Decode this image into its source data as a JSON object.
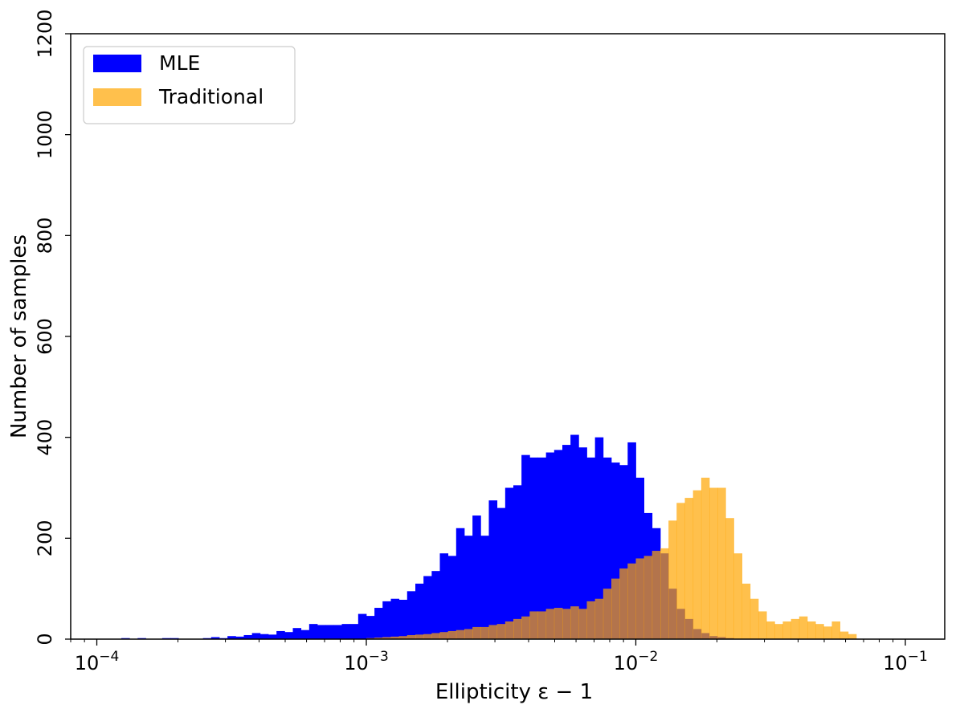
{
  "chart_data": {
    "type": "bar",
    "title": "",
    "xlabel": "Ellipticity ε − 1",
    "ylabel": "Number of samples",
    "xscale": "log",
    "xlim": [
      8e-05,
      0.14
    ],
    "ylim": [
      0,
      1200
    ],
    "yticks": [
      0,
      200,
      400,
      600,
      800,
      1000,
      1200
    ],
    "xticks": [
      {
        "value": 0.0001,
        "base": "10",
        "exp": "−4"
      },
      {
        "value": 0.001,
        "base": "10",
        "exp": "−3"
      },
      {
        "value": 0.01,
        "base": "10",
        "exp": "−2"
      },
      {
        "value": 0.1,
        "base": "10",
        "exp": "−1"
      }
    ],
    "bin_edges": [
      0.0001,
      0.0001072,
      0.0001149,
      0.0001233,
      0.0001322,
      0.0001417,
      0.000152,
      0.000163,
      0.0001748,
      0.0001874,
      0.0002009,
      0.0002154,
      0.000231,
      0.0002477,
      0.0002656,
      0.0002848,
      0.0003054,
      0.0003275,
      0.0003511,
      0.0003765,
      0.0004037,
      0.0004329,
      0.0004642,
      0.0004977,
      0.0005337,
      0.0005722,
      0.0006136,
      0.0006579,
      0.0007055,
      0.0007565,
      0.0008111,
      0.0008697,
      0.0009326,
      0.001,
      0.001072,
      0.001149,
      0.001233,
      0.001322,
      0.001417,
      0.00152,
      0.00163,
      0.001748,
      0.001874,
      0.002009,
      0.002154,
      0.00231,
      0.002477,
      0.002656,
      0.002848,
      0.003054,
      0.003275,
      0.003511,
      0.003765,
      0.004037,
      0.004329,
      0.004642,
      0.004977,
      0.005337,
      0.005722,
      0.006136,
      0.006579,
      0.007055,
      0.007565,
      0.008111,
      0.008697,
      0.009326,
      0.01,
      0.01072,
      0.01149,
      0.01233,
      0.01322,
      0.01417,
      0.0152,
      0.0163,
      0.01748,
      0.01874,
      0.02009,
      0.02154,
      0.0231,
      0.02477,
      0.02656,
      0.02848,
      0.03054,
      0.03275,
      0.03511,
      0.03765,
      0.04037,
      0.04329,
      0.04642,
      0.04977,
      0.05337,
      0.05722,
      0.06136,
      0.06579,
      0.07055,
      0.07565,
      0.08111,
      0.08697,
      0.09326,
      0.1
    ],
    "series": [
      {
        "name": "MLE",
        "color": "#0000ff",
        "alpha": 1.0,
        "values": [
          0,
          0,
          0,
          2,
          0,
          2,
          0,
          0,
          2,
          2,
          0,
          0,
          0,
          2,
          4,
          2,
          6,
          5,
          8,
          12,
          10,
          9,
          16,
          14,
          22,
          18,
          30,
          28,
          28,
          28,
          30,
          30,
          50,
          46,
          62,
          75,
          80,
          78,
          95,
          110,
          125,
          135,
          170,
          165,
          220,
          205,
          245,
          205,
          275,
          260,
          300,
          305,
          365,
          360,
          360,
          370,
          375,
          385,
          405,
          380,
          360,
          400,
          360,
          350,
          345,
          390,
          320,
          250,
          220,
          170,
          100,
          60,
          40,
          20,
          12,
          6,
          4,
          2,
          0,
          0,
          0,
          0,
          0,
          0,
          0,
          0,
          0,
          0,
          0,
          0,
          0,
          0,
          0,
          0,
          0,
          0,
          0,
          0,
          0
        ]
      },
      {
        "name": "Traditional",
        "color": "#ffa500",
        "alpha": 0.7,
        "values": [
          0,
          0,
          0,
          0,
          0,
          0,
          0,
          0,
          0,
          0,
          0,
          0,
          0,
          0,
          0,
          0,
          0,
          0,
          0,
          0,
          0,
          0,
          0,
          0,
          0,
          0,
          0,
          0,
          0,
          0,
          0,
          0,
          0,
          2,
          3,
          4,
          5,
          6,
          8,
          9,
          10,
          12,
          14,
          16,
          18,
          20,
          24,
          24,
          28,
          30,
          35,
          40,
          45,
          55,
          55,
          60,
          62,
          60,
          65,
          60,
          75,
          80,
          100,
          120,
          140,
          150,
          160,
          165,
          175,
          180,
          235,
          270,
          280,
          295,
          320,
          300,
          300,
          240,
          170,
          110,
          80,
          55,
          35,
          30,
          35,
          40,
          45,
          35,
          30,
          25,
          35,
          15,
          10,
          0,
          0,
          0,
          0,
          0,
          0
        ]
      }
    ],
    "legend": {
      "position": "top-left",
      "entries": [
        "MLE",
        "Traditional"
      ]
    }
  }
}
